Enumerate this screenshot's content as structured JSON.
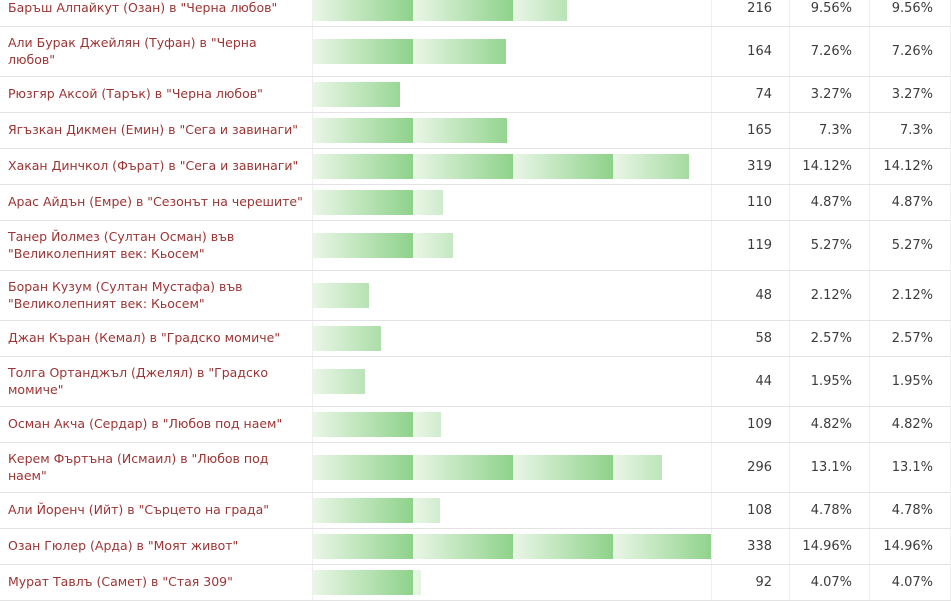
{
  "colors": {
    "label_text": "#9c3434",
    "number_text": "#3c3c3c",
    "row_border": "#e3e3e3",
    "cell_border": "#efefef",
    "bar_gradient_start": "#eaf6e7",
    "bar_gradient_end": "#8ed28a"
  },
  "poll": {
    "max_value": 14.96,
    "rows": [
      {
        "label": "Баръш Алпайкут (Озан) в \"Черна любов\"",
        "votes": "216",
        "pct1": "9.56%",
        "pct2": "9.56%",
        "value": 9.56
      },
      {
        "label": "Али Бурак Джейлян (Туфан) в \"Черна любов\"",
        "votes": "164",
        "pct1": "7.26%",
        "pct2": "7.26%",
        "value": 7.26
      },
      {
        "label": "Рюзгяр Аксой (Тарък) в \"Черна любов\"",
        "votes": "74",
        "pct1": "3.27%",
        "pct2": "3.27%",
        "value": 3.27
      },
      {
        "label": "Ягъзкан Дикмен (Емин) в \"Сега и завинаги\"",
        "votes": "165",
        "pct1": "7.3%",
        "pct2": "7.3%",
        "value": 7.3
      },
      {
        "label": "Хакан Динчкол (Фърат) в \"Сега и завинаги\"",
        "votes": "319",
        "pct1": "14.12%",
        "pct2": "14.12%",
        "value": 14.12
      },
      {
        "label": "Арас Айдън (Емре) в \"Сезонът на черешите\"",
        "votes": "110",
        "pct1": "4.87%",
        "pct2": "4.87%",
        "value": 4.87
      },
      {
        "label": "Танер Йолмез (Султан Осман) във \"Великолепният век: Кьосем\"",
        "votes": "119",
        "pct1": "5.27%",
        "pct2": "5.27%",
        "value": 5.27
      },
      {
        "label": "Боран Кузум (Султан Мустафа) във \"Великолепният век: Кьосем\"",
        "votes": "48",
        "pct1": "2.12%",
        "pct2": "2.12%",
        "value": 2.12
      },
      {
        "label": "Джан Къран (Кемал) в \"Градско момиче\"",
        "votes": "58",
        "pct1": "2.57%",
        "pct2": "2.57%",
        "value": 2.57
      },
      {
        "label": "Толга Ортанджъл (Джелял) в \"Градско момиче\"",
        "votes": "44",
        "pct1": "1.95%",
        "pct2": "1.95%",
        "value": 1.95
      },
      {
        "label": "Осман Акча (Сердар) в \"Любов под наем\"",
        "votes": "109",
        "pct1": "4.82%",
        "pct2": "4.82%",
        "value": 4.82
      },
      {
        "label": "Керем Фъртъна (Исмаил) в \"Любов под наем\"",
        "votes": "296",
        "pct1": "13.1%",
        "pct2": "13.1%",
        "value": 13.1
      },
      {
        "label": "Али Йоренч (Ийт) в \"Сърцето на града\"",
        "votes": "108",
        "pct1": "4.78%",
        "pct2": "4.78%",
        "value": 4.78
      },
      {
        "label": "Озан Гюлер (Арда) в \"Моят живот\"",
        "votes": "338",
        "pct1": "14.96%",
        "pct2": "14.96%",
        "value": 14.96
      },
      {
        "label": "Мурат Тавлъ (Самет) в \"Стая 309\"",
        "votes": "92",
        "pct1": "4.07%",
        "pct2": "4.07%",
        "value": 4.07
      }
    ]
  },
  "chart_data": {
    "type": "bar",
    "orientation": "horizontal",
    "title": "",
    "categories": [
      "Баръш Алпайкут (Озан) в \"Черна любов\"",
      "Али Бурак Джейлян (Туфан) в \"Черна любов\"",
      "Рюзгяр Аксой (Тарък) в \"Черна любов\"",
      "Ягъзкан Дикмен (Емин) в \"Сега и завинаги\"",
      "Хакан Динчкол (Фърат) в \"Сега и завинаги\"",
      "Арас Айдън (Емре) в \"Сезонът на черешите\"",
      "Танер Йолмез (Султан Осман) във \"Великолепният век: Кьосем\"",
      "Боран Кузум (Султан Мустафа) във \"Великолепният век: Кьосем\"",
      "Джан Къран (Кемал) в \"Градско момиче\"",
      "Толга Ортанджъл (Джелял) в \"Градско момиче\"",
      "Осман Акча (Сердар) в \"Любов под наем\"",
      "Керем Фъртъна (Исмаил) в \"Любов под наем\"",
      "Али Йоренч (Ийт) в \"Сърцето на града\"",
      "Озан Гюлер (Арда) в \"Моят живот\"",
      "Мурат Тавлъ (Самет) в \"Стая 309\""
    ],
    "series": [
      {
        "name": "votes",
        "values": [
          216,
          164,
          74,
          165,
          319,
          110,
          119,
          48,
          58,
          44,
          109,
          296,
          108,
          338,
          92
        ]
      },
      {
        "name": "percent",
        "values": [
          9.56,
          7.26,
          3.27,
          7.3,
          14.12,
          4.87,
          5.27,
          2.12,
          2.57,
          1.95,
          4.82,
          13.1,
          4.78,
          14.96,
          4.07
        ]
      }
    ],
    "value_labels": [
      "9.56%",
      "7.26%",
      "3.27%",
      "7.3%",
      "14.12%",
      "4.87%",
      "5.27%",
      "2.12%",
      "2.57%",
      "1.95%",
      "4.82%",
      "13.1%",
      "4.78%",
      "14.96%",
      "4.07%"
    ],
    "xlim": [
      0,
      14.96
    ],
    "grid": false,
    "legend": false
  }
}
